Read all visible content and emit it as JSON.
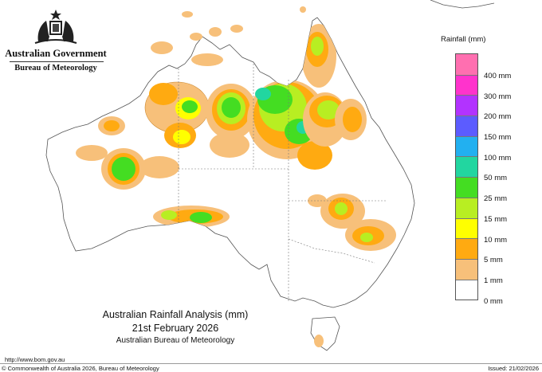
{
  "header": {
    "government": "Australian Government",
    "bureau": "Bureau of Meteorology",
    "crest_icon": "coat-of-arms-icon"
  },
  "legend": {
    "title": "Rainfall (mm)",
    "items": [
      {
        "label": "",
        "color": "#ff6fb0"
      },
      {
        "label": "400 mm",
        "color": "#ff33cc"
      },
      {
        "label": "300 mm",
        "color": "#b233ff"
      },
      {
        "label": "200 mm",
        "color": "#5c5cff"
      },
      {
        "label": "150 mm",
        "color": "#22b0f0"
      },
      {
        "label": "100 mm",
        "color": "#22d6a0"
      },
      {
        "label": "50 mm",
        "color": "#44dd22"
      },
      {
        "label": "25 mm",
        "color": "#b8ee22"
      },
      {
        "label": "15 mm",
        "color": "#ffff00"
      },
      {
        "label": "10 mm",
        "color": "#ffaa11"
      },
      {
        "label": "5 mm",
        "color": "#f7c07a"
      },
      {
        "label": "1 mm",
        "color": "#ffffff"
      }
    ],
    "zero_label": "0 mm"
  },
  "map": {
    "title": "Australian Rainfall Analysis (mm)",
    "date": "21st February 2026",
    "source": "Australian Bureau of Meteorology"
  },
  "footer": {
    "url": "http://www.bom.gov.au",
    "copyright": "© Commonwealth of Australia 2026, Bureau of Meteorology",
    "issued": "Issued: 21/02/2026"
  }
}
